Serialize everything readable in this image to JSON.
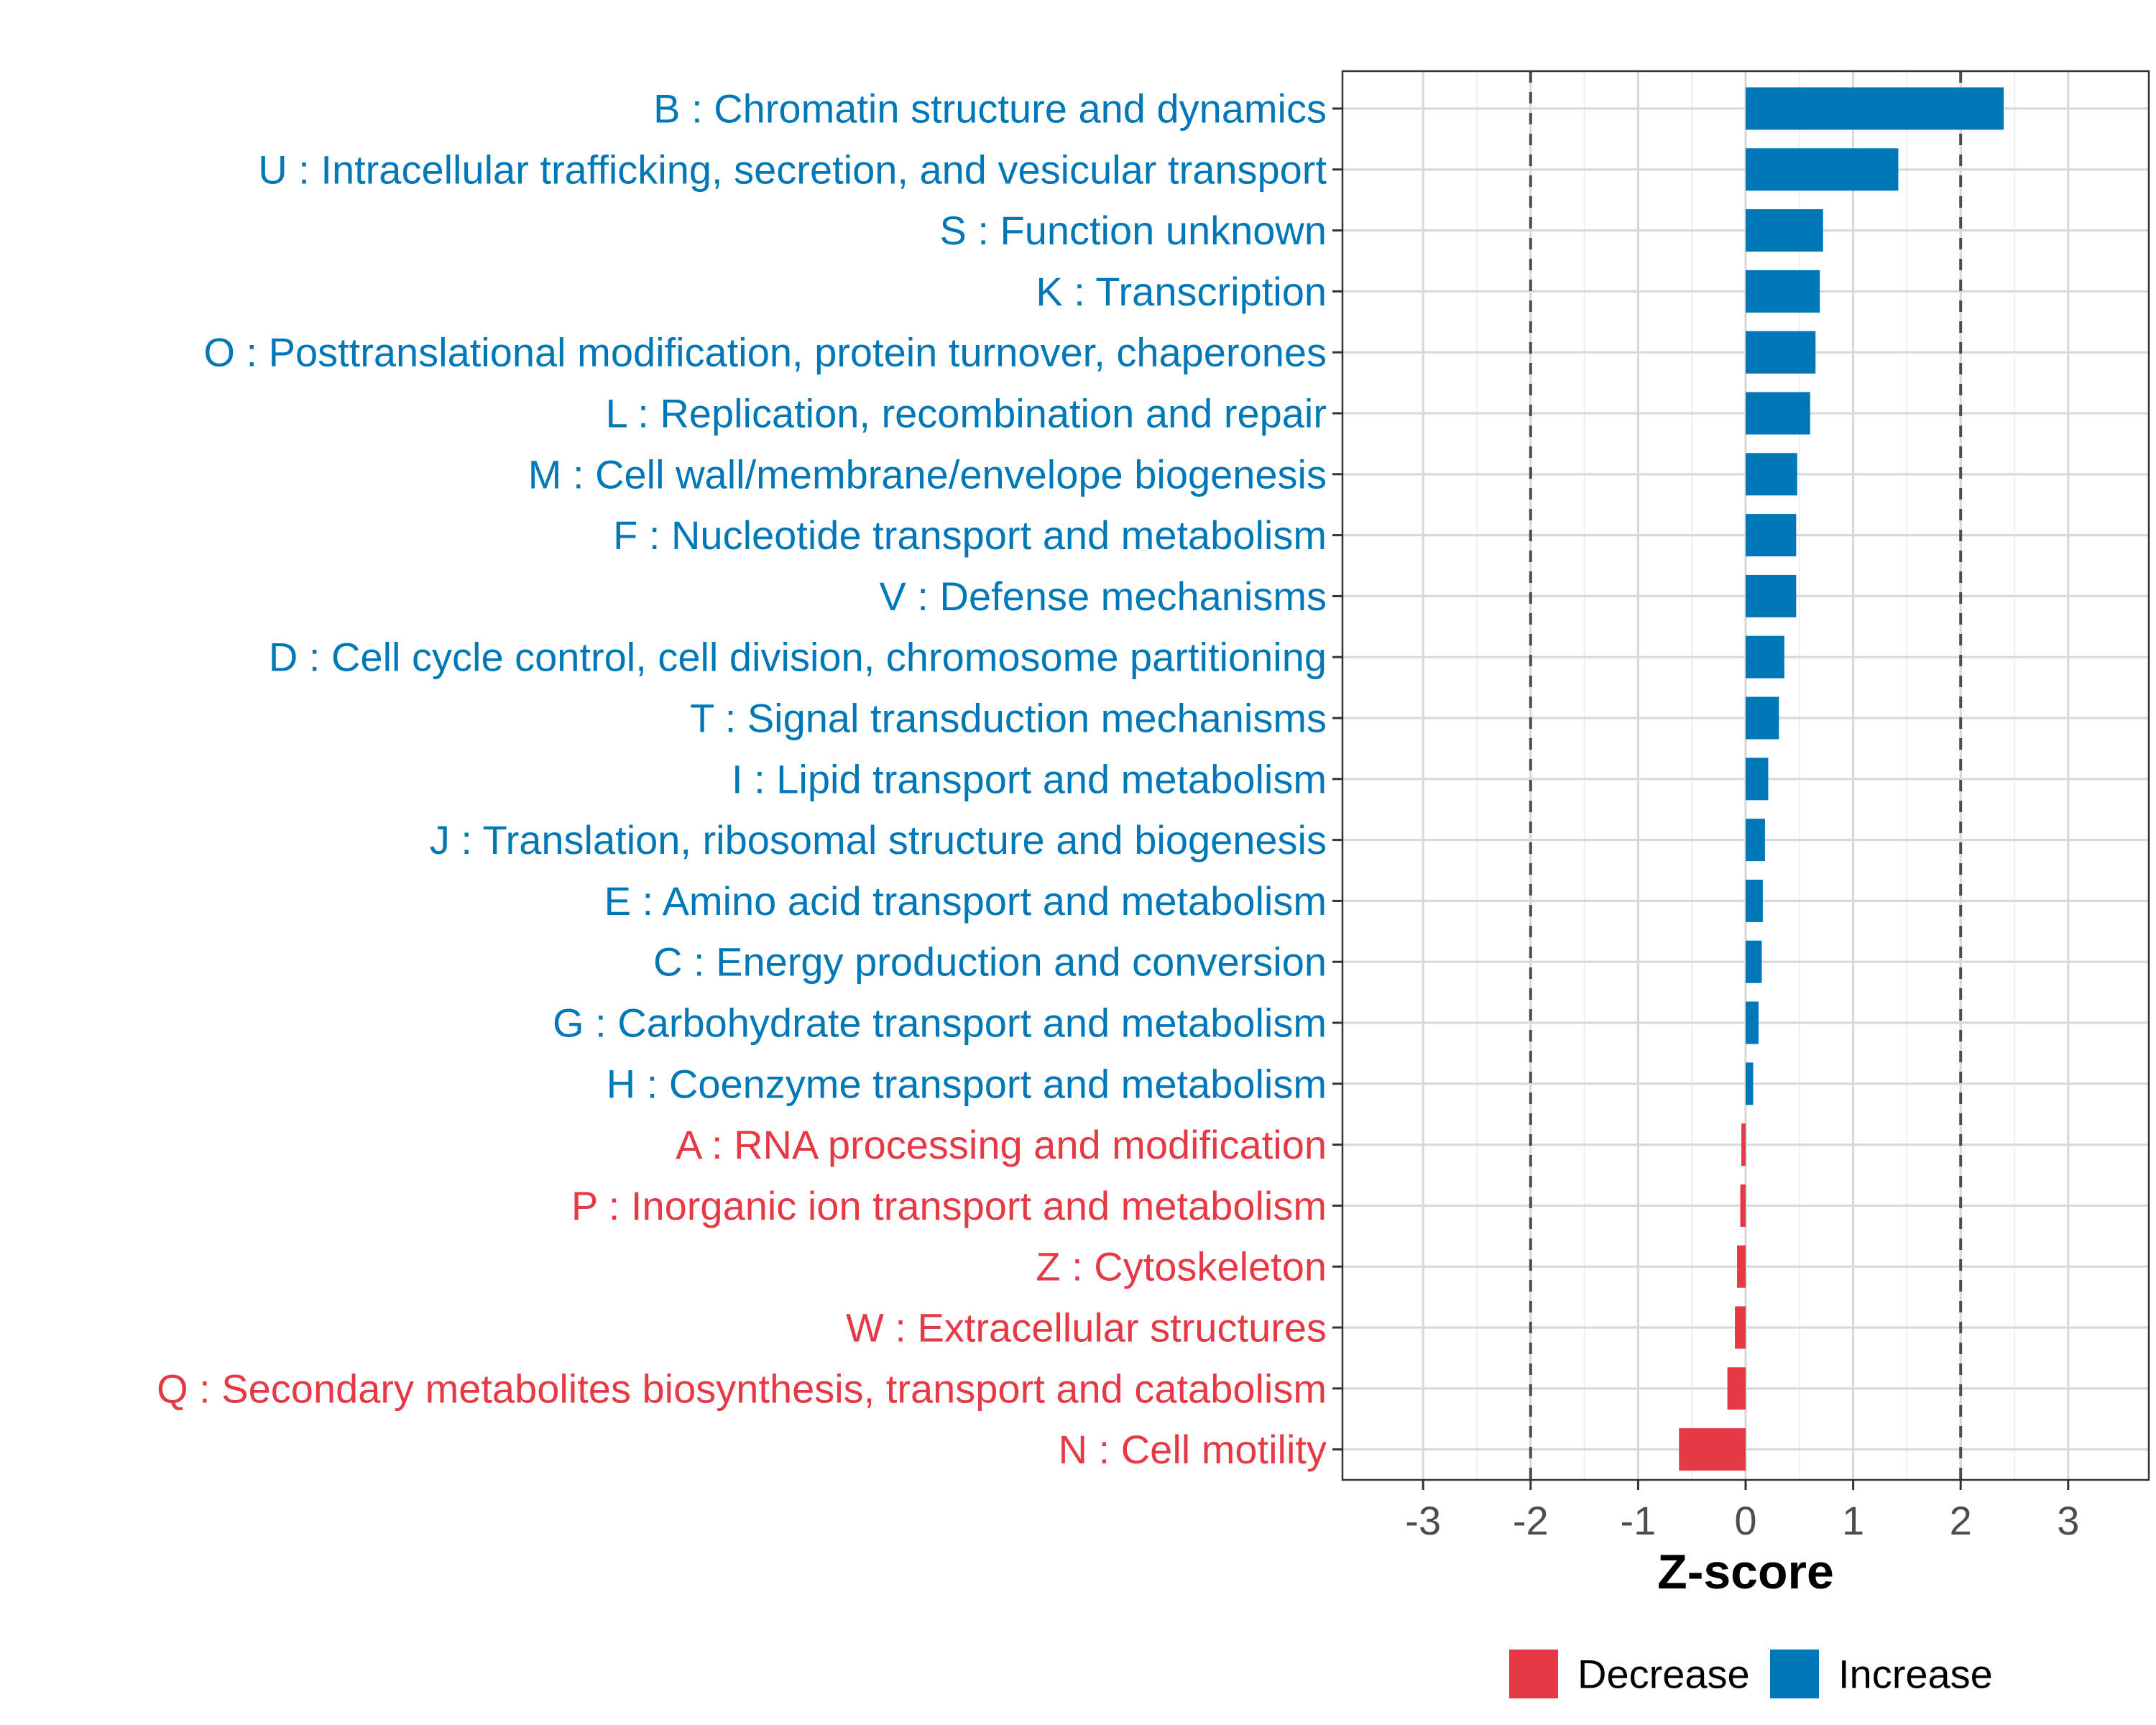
{
  "chart_data": {
    "type": "bar",
    "orientation": "horizontal",
    "xlabel": "Z-score",
    "xlim": [
      -3.75,
      3.75
    ],
    "xticks": [
      -3,
      -2,
      -1,
      0,
      1,
      2,
      3
    ],
    "xtick_labels": [
      "-3",
      "-2",
      "-1",
      "0",
      "1",
      "2",
      "3"
    ],
    "reference_lines": [
      -2,
      2
    ],
    "grid": true,
    "legend_position": "bottom",
    "legend": [
      {
        "name": "Decrease",
        "color": "#E63946"
      },
      {
        "name": "Increase",
        "color": "#0077B6"
      }
    ],
    "categories": [
      {
        "label": "B : Chromatin structure and dynamics",
        "value": 2.4,
        "group": "Increase"
      },
      {
        "label": "U : Intracellular trafficking, secretion, and vesicular transport",
        "value": 1.42,
        "group": "Increase"
      },
      {
        "label": "S : Function unknown",
        "value": 0.72,
        "group": "Increase"
      },
      {
        "label": "K : Transcription",
        "value": 0.69,
        "group": "Increase"
      },
      {
        "label": "O : Posttranslational modification, protein turnover, chaperones",
        "value": 0.65,
        "group": "Increase"
      },
      {
        "label": "L : Replication, recombination and repair",
        "value": 0.6,
        "group": "Increase"
      },
      {
        "label": "M : Cell wall/membrane/envelope biogenesis",
        "value": 0.48,
        "group": "Increase"
      },
      {
        "label": "F : Nucleotide transport and metabolism",
        "value": 0.47,
        "group": "Increase"
      },
      {
        "label": "V : Defense mechanisms",
        "value": 0.47,
        "group": "Increase"
      },
      {
        "label": "D : Cell cycle control, cell division, chromosome partitioning",
        "value": 0.36,
        "group": "Increase"
      },
      {
        "label": "T : Signal transduction mechanisms",
        "value": 0.31,
        "group": "Increase"
      },
      {
        "label": "I : Lipid transport and metabolism",
        "value": 0.21,
        "group": "Increase"
      },
      {
        "label": "J : Translation, ribosomal structure and biogenesis",
        "value": 0.18,
        "group": "Increase"
      },
      {
        "label": "E : Amino acid transport and metabolism",
        "value": 0.16,
        "group": "Increase"
      },
      {
        "label": "C : Energy production and conversion",
        "value": 0.15,
        "group": "Increase"
      },
      {
        "label": "G : Carbohydrate transport and metabolism",
        "value": 0.12,
        "group": "Increase"
      },
      {
        "label": "H : Coenzyme transport and metabolism",
        "value": 0.07,
        "group": "Increase"
      },
      {
        "label": "A : RNA processing and modification",
        "value": -0.04,
        "group": "Decrease"
      },
      {
        "label": "P : Inorganic ion transport and metabolism",
        "value": -0.05,
        "group": "Decrease"
      },
      {
        "label": "Z : Cytoskeleton",
        "value": -0.08,
        "group": "Decrease"
      },
      {
        "label": "W : Extracellular structures",
        "value": -0.1,
        "group": "Decrease"
      },
      {
        "label": "Q : Secondary metabolites biosynthesis, transport and catabolism",
        "value": -0.17,
        "group": "Decrease"
      },
      {
        "label": "N : Cell motility",
        "value": -0.62,
        "group": "Decrease"
      }
    ]
  }
}
